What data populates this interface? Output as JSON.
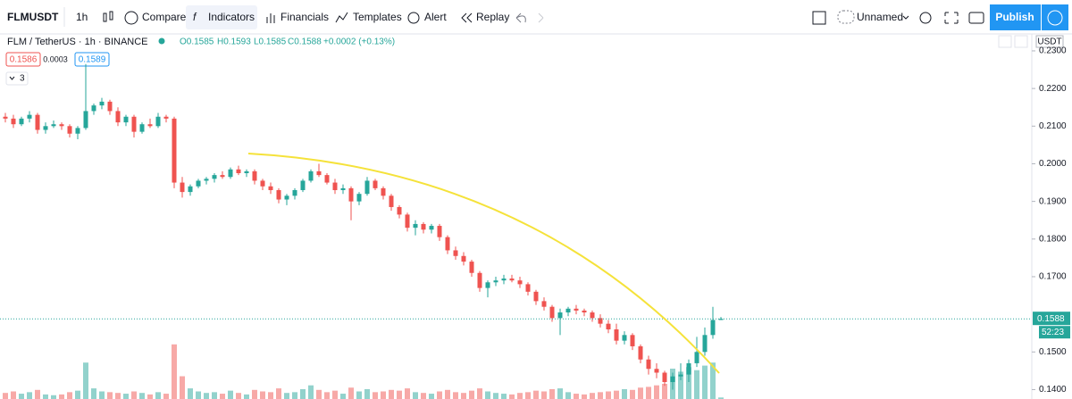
{
  "toolbar": {
    "symbol": "FLMUSDT",
    "interval": "1h",
    "compare": "Compare",
    "indicators": "Indicators",
    "financials": "Financials",
    "templates": "Templates",
    "alert": "Alert",
    "replay": "Replay",
    "layout_name": "Unnamed",
    "publish": "Publish"
  },
  "legend": {
    "title": "FLM / TetherUS · 1h · BINANCE",
    "open": "O0.1585",
    "high": "H0.1593",
    "low": "L0.1585",
    "close": "C0.1588",
    "change": "+0.0002 (+0.13%)",
    "bid": "0.1586",
    "spread": "0.0003",
    "ask": "0.1589",
    "indicators_count": "3"
  },
  "chart_data": {
    "type": "candlestick",
    "currency": "USDT",
    "up_color": "#26a69a",
    "down_color": "#ef5350",
    "grid": false,
    "ylim": [
      0.1375,
      0.2345
    ],
    "yticks": [
      {
        "value": 0.23,
        "label": "0.2300"
      },
      {
        "value": 0.22,
        "label": "0.2200"
      },
      {
        "value": 0.21,
        "label": "0.2100"
      },
      {
        "value": 0.2,
        "label": "0.2000"
      },
      {
        "value": 0.19,
        "label": "0.1900"
      },
      {
        "value": 0.18,
        "label": "0.1800"
      },
      {
        "value": 0.17,
        "label": "0.1700"
      },
      {
        "value": 0.15,
        "label": "0.1500"
      },
      {
        "value": 0.14,
        "label": "0.1400"
      }
    ],
    "last_price": 0.1588,
    "countdown": "52:23",
    "candles": [
      [
        0.2125,
        0.2135,
        0.211,
        0.212
      ],
      [
        0.212,
        0.213,
        0.2095,
        0.2105
      ],
      [
        0.2105,
        0.2125,
        0.21,
        0.212
      ],
      [
        0.212,
        0.214,
        0.211,
        0.213
      ],
      [
        0.213,
        0.2135,
        0.208,
        0.209
      ],
      [
        0.209,
        0.211,
        0.208,
        0.21
      ],
      [
        0.21,
        0.2115,
        0.2095,
        0.2105
      ],
      [
        0.2105,
        0.211,
        0.209,
        0.21
      ],
      [
        0.21,
        0.2105,
        0.207,
        0.208
      ],
      [
        0.208,
        0.21,
        0.2065,
        0.2095
      ],
      [
        0.2095,
        0.2265,
        0.209,
        0.214
      ],
      [
        0.214,
        0.216,
        0.213,
        0.2155
      ],
      [
        0.2155,
        0.2175,
        0.2145,
        0.2165
      ],
      [
        0.2165,
        0.217,
        0.213,
        0.214
      ],
      [
        0.214,
        0.215,
        0.21,
        0.211
      ],
      [
        0.211,
        0.213,
        0.21,
        0.2125
      ],
      [
        0.2125,
        0.213,
        0.207,
        0.2085
      ],
      [
        0.2085,
        0.211,
        0.208,
        0.2105
      ],
      [
        0.2105,
        0.212,
        0.2095,
        0.21
      ],
      [
        0.21,
        0.2135,
        0.2095,
        0.2125
      ],
      [
        0.2125,
        0.213,
        0.211,
        0.212
      ],
      [
        0.212,
        0.2125,
        0.1935,
        0.195
      ],
      [
        0.195,
        0.1965,
        0.191,
        0.1925
      ],
      [
        0.1925,
        0.1945,
        0.1915,
        0.194
      ],
      [
        0.194,
        0.196,
        0.1935,
        0.1955
      ],
      [
        0.1955,
        0.1965,
        0.1945,
        0.196
      ],
      [
        0.196,
        0.1975,
        0.195,
        0.197
      ],
      [
        0.197,
        0.198,
        0.196,
        0.1965
      ],
      [
        0.1965,
        0.199,
        0.196,
        0.1985
      ],
      [
        0.1985,
        0.1995,
        0.197,
        0.1975
      ],
      [
        0.1975,
        0.1985,
        0.1965,
        0.198
      ],
      [
        0.198,
        0.1985,
        0.1945,
        0.1955
      ],
      [
        0.1955,
        0.196,
        0.193,
        0.194
      ],
      [
        0.194,
        0.195,
        0.192,
        0.193
      ],
      [
        0.193,
        0.1935,
        0.1895,
        0.1905
      ],
      [
        0.1905,
        0.192,
        0.189,
        0.1915
      ],
      [
        0.1915,
        0.1935,
        0.1905,
        0.193
      ],
      [
        0.193,
        0.196,
        0.1925,
        0.1955
      ],
      [
        0.1955,
        0.1985,
        0.195,
        0.198
      ],
      [
        0.198,
        0.2,
        0.1965,
        0.197
      ],
      [
        0.197,
        0.1975,
        0.1945,
        0.195
      ],
      [
        0.195,
        0.196,
        0.192,
        0.193
      ],
      [
        0.193,
        0.1945,
        0.192,
        0.1935
      ],
      [
        0.1935,
        0.194,
        0.185,
        0.19
      ],
      [
        0.19,
        0.1925,
        0.189,
        0.192
      ],
      [
        0.192,
        0.1965,
        0.1915,
        0.1955
      ],
      [
        0.1955,
        0.196,
        0.193,
        0.1935
      ],
      [
        0.1935,
        0.194,
        0.1905,
        0.1915
      ],
      [
        0.1915,
        0.192,
        0.1875,
        0.1885
      ],
      [
        0.1885,
        0.189,
        0.1855,
        0.1865
      ],
      [
        0.1865,
        0.187,
        0.182,
        0.183
      ],
      [
        0.183,
        0.185,
        0.181,
        0.184
      ],
      [
        0.184,
        0.1845,
        0.1815,
        0.1825
      ],
      [
        0.1825,
        0.184,
        0.1815,
        0.1835
      ],
      [
        0.1835,
        0.184,
        0.1795,
        0.1805
      ],
      [
        0.1805,
        0.181,
        0.176,
        0.177
      ],
      [
        0.177,
        0.178,
        0.1745,
        0.1755
      ],
      [
        0.1755,
        0.1765,
        0.173,
        0.174
      ],
      [
        0.174,
        0.1745,
        0.17,
        0.171
      ],
      [
        0.171,
        0.1715,
        0.166,
        0.167
      ],
      [
        0.167,
        0.169,
        0.1645,
        0.1685
      ],
      [
        0.1685,
        0.17,
        0.1675,
        0.169
      ],
      [
        0.169,
        0.1705,
        0.168,
        0.1695
      ],
      [
        0.1695,
        0.1705,
        0.1685,
        0.169
      ],
      [
        0.169,
        0.17,
        0.167,
        0.168
      ],
      [
        0.168,
        0.1685,
        0.165,
        0.166
      ],
      [
        0.166,
        0.1665,
        0.1625,
        0.1635
      ],
      [
        0.1635,
        0.1645,
        0.161,
        0.162
      ],
      [
        0.162,
        0.1625,
        0.158,
        0.159
      ],
      [
        0.159,
        0.1615,
        0.1545,
        0.1605
      ],
      [
        0.1605,
        0.162,
        0.1595,
        0.1615
      ],
      [
        0.1615,
        0.1625,
        0.16,
        0.161
      ],
      [
        0.161,
        0.1615,
        0.1595,
        0.1605
      ],
      [
        0.1605,
        0.161,
        0.158,
        0.159
      ],
      [
        0.159,
        0.16,
        0.1565,
        0.1575
      ],
      [
        0.1575,
        0.1585,
        0.155,
        0.156
      ],
      [
        0.156,
        0.1575,
        0.152,
        0.153
      ],
      [
        0.153,
        0.1555,
        0.152,
        0.1545
      ],
      [
        0.1545,
        0.155,
        0.1505,
        0.1515
      ],
      [
        0.1515,
        0.152,
        0.147,
        0.148
      ],
      [
        0.148,
        0.149,
        0.144,
        0.1455
      ],
      [
        0.1455,
        0.147,
        0.143,
        0.1445
      ],
      [
        0.1445,
        0.145,
        0.141,
        0.142
      ],
      [
        0.142,
        0.1445,
        0.14,
        0.1435
      ],
      [
        0.1435,
        0.147,
        0.1425,
        0.144
      ],
      [
        0.144,
        0.148,
        0.142,
        0.147
      ],
      [
        0.147,
        0.154,
        0.146,
        0.15
      ],
      [
        0.15,
        0.1565,
        0.149,
        0.1545
      ],
      [
        0.1545,
        0.162,
        0.1535,
        0.1585
      ],
      [
        0.1585,
        0.1593,
        0.1585,
        0.1588
      ]
    ],
    "volume_lim": [
      0,
      100
    ],
    "volume": [
      8,
      10,
      7,
      9,
      12,
      6,
      5,
      6,
      9,
      11,
      48,
      14,
      10,
      9,
      8,
      7,
      10,
      8,
      6,
      9,
      7,
      72,
      30,
      14,
      10,
      8,
      9,
      7,
      11,
      8,
      6,
      12,
      10,
      9,
      14,
      8,
      9,
      13,
      18,
      12,
      9,
      11,
      7,
      15,
      10,
      13,
      9,
      10,
      12,
      11,
      14,
      9,
      8,
      7,
      10,
      12,
      9,
      8,
      11,
      14,
      10,
      8,
      7,
      6,
      8,
      9,
      11,
      10,
      13,
      14,
      9,
      7,
      6,
      8,
      9,
      10,
      11,
      13,
      12,
      15,
      16,
      18,
      20,
      40,
      36,
      42,
      38,
      44,
      48,
      2
    ]
  }
}
